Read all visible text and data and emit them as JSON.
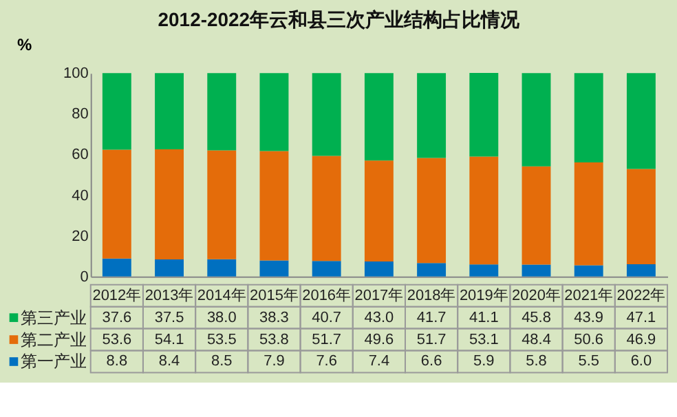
{
  "chart_data": {
    "type": "bar",
    "title": "2012-2022年云和县三次产业结构占比情况",
    "ylabel": "%",
    "categories": [
      "2012年",
      "2013年",
      "2014年",
      "2015年",
      "2016年",
      "2017年",
      "2018年",
      "2019年",
      "2020年",
      "2021年",
      "2022年"
    ],
    "series": [
      {
        "name": "第一产业",
        "color": "#0070c0",
        "values": [
          8.8,
          8.4,
          8.5,
          7.9,
          7.6,
          7.4,
          6.6,
          5.9,
          5.8,
          5.5,
          6.0
        ],
        "value_labels": [
          "8.8",
          "8.4",
          "8.5",
          "7.9",
          "7.6",
          "7.4",
          "6.6",
          "5.9",
          "5.8",
          "5.5",
          "6.0"
        ]
      },
      {
        "name": "第二产业",
        "color": "#e46c0a",
        "values": [
          53.6,
          54.1,
          53.5,
          53.8,
          51.7,
          49.6,
          51.7,
          53.1,
          48.4,
          50.6,
          46.9
        ],
        "value_labels": [
          "53.6",
          "54.1",
          "53.5",
          "53.8",
          "51.7",
          "49.6",
          "51.7",
          "53.1",
          "48.4",
          "50.6",
          "46.9"
        ]
      },
      {
        "name": "第三产业",
        "color": "#00b050",
        "values": [
          37.6,
          37.5,
          38.0,
          38.3,
          40.7,
          43.0,
          41.7,
          41.1,
          45.8,
          43.9,
          47.1
        ],
        "value_labels": [
          "37.6",
          "37.5",
          "38.0",
          "38.3",
          "40.7",
          "43.0",
          "41.7",
          "41.1",
          "45.8",
          "43.9",
          "47.1"
        ]
      }
    ],
    "stacked": true,
    "ylim": [
      0,
      100
    ],
    "yticks": [
      0,
      20,
      40,
      60,
      80,
      100
    ],
    "legend": "bottom"
  }
}
